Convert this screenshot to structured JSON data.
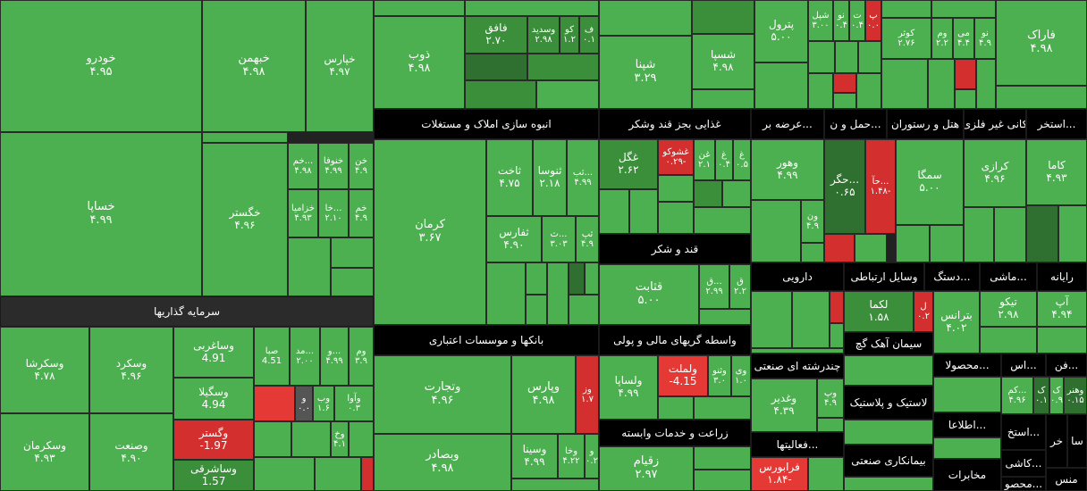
{
  "chart_data": {
    "type": "treemap",
    "colors": {
      "up": "#4caf50",
      "up_mid": "#3b8f3b",
      "up_dark": "#2f6f2f",
      "down": "#d32f2f",
      "down_light": "#e53935",
      "neutral": "#555555",
      "header": "#2b2b2b"
    },
    "groups": [
      {
        "label": "سرمایه گذاریها"
      },
      {
        "label": "انبوه سازی املاک و مستغلات"
      },
      {
        "label": "غذایی بجز قند وشکر"
      },
      {
        "label": "قند و شکر"
      },
      {
        "label": "بانکها و موسسات اعتباری"
      },
      {
        "label": "واسطه گریهای مالی و پولی"
      },
      {
        "label": "زراعت و خدمات وابسته"
      },
      {
        "label": "عرضه بر..."
      },
      {
        "label": "حمل و ن..."
      },
      {
        "label": "هتل و رستوران"
      },
      {
        "label": "کانی غیر فلزی"
      },
      {
        "label": "استخر..."
      },
      {
        "label": "دارویی"
      },
      {
        "label": "وسایل ارتباطی"
      },
      {
        "label": "دستگ..."
      },
      {
        "label": "ماشی..."
      },
      {
        "label": "رایانه"
      },
      {
        "label": "سیمان آهک گچ"
      },
      {
        "label": "محصولا..."
      },
      {
        "label": "اس..."
      },
      {
        "label": "فن..."
      },
      {
        "label": "چندرشته ای صنعتی"
      },
      {
        "label": "لاستیک و پلاستیک"
      },
      {
        "label": "اطلاعا..."
      },
      {
        "label": "استخ..."
      },
      {
        "label": "فعالیتها..."
      },
      {
        "label": "بیمانکاری صنعتی"
      },
      {
        "label": "مخابرات"
      },
      {
        "label": "خر"
      },
      {
        "label": "سا"
      },
      {
        "label": "کاشی..."
      },
      {
        "label": "منس"
      },
      {
        "label": "محصو..."
      }
    ],
    "tiles": [
      {
        "name": "خودرو",
        "value": "۴.۹۵",
        "change": 4.95
      },
      {
        "name": "خبهمن",
        "value": "۴.۹۸",
        "change": 4.98
      },
      {
        "name": "خپارس",
        "value": "۴.۹۷",
        "change": 4.97
      },
      {
        "name": "خساپا",
        "value": "۴.۹۹",
        "change": 4.99
      },
      {
        "name": "خگستر",
        "value": "۴.۹۶",
        "change": 4.96
      },
      {
        "name": "خم...",
        "value": "۴.۹۸",
        "change": 4.98
      },
      {
        "name": "خنوفا",
        "value": "۴.۹۹",
        "change": 4.99
      },
      {
        "name": "خن",
        "value": "۴.۹",
        "change": 4.9
      },
      {
        "name": "خزامیا",
        "value": "۴.۹۳",
        "change": 4.93
      },
      {
        "name": "خا...",
        "value": "۲.۱۰",
        "change": 2.1
      },
      {
        "name": "خم",
        "value": "۴.۹",
        "change": 4.9
      },
      {
        "name": "وسکرشا",
        "value": "۴.۷۸",
        "change": 4.78
      },
      {
        "name": "وسکرد",
        "value": "۴.۹۶",
        "change": 4.96
      },
      {
        "name": "وساغربی",
        "value": "4.91",
        "change": 4.91
      },
      {
        "name": "صبا",
        "value": "4.51",
        "change": 4.51
      },
      {
        "name": "مد...",
        "value": "۲.۰۰",
        "change": 2.0
      },
      {
        "name": "و...",
        "value": "۴.۹۹",
        "change": 4.99
      },
      {
        "name": "وم",
        "value": "۳.۹",
        "change": 3.9
      },
      {
        "name": "وسکرمان",
        "value": "۴.۹۳",
        "change": 4.93
      },
      {
        "name": "وصنعت",
        "value": "۴.۹۰",
        "change": 4.9
      },
      {
        "name": "وسگیلا",
        "value": "4.94",
        "change": 4.94
      },
      {
        "name": "و",
        "value": "۰.۰",
        "change": 0.0
      },
      {
        "name": "وب",
        "value": "۱.۶",
        "change": 1.6
      },
      {
        "name": "وآوا",
        "value": "۰.۳",
        "change": 0.3
      },
      {
        "name": "وگستر",
        "value": "-1.97",
        "change": -1.97
      },
      {
        "name": "وخ",
        "value": "۴.۱",
        "change": 4.1
      },
      {
        "name": "وساشرقی",
        "value": "1.57",
        "change": 1.57
      },
      {
        "name": "فافق",
        "value": "۲.۷۰",
        "change": 2.7
      },
      {
        "name": "وسدید",
        "value": "۲.۹۸",
        "change": 2.98
      },
      {
        "name": "کو",
        "value": "۱.۲",
        "change": 1.2
      },
      {
        "name": "ف",
        "value": "۰.۱",
        "change": 0.1
      },
      {
        "name": "ذوب",
        "value": "۴.۹۸",
        "change": 4.98
      },
      {
        "name": "شپنا",
        "value": "۳.۲۹",
        "change": 3.29
      },
      {
        "name": "شسپا",
        "value": "۴.۹۸",
        "change": 4.98
      },
      {
        "name": "پترول",
        "value": "۵.۰۰",
        "change": 5.0
      },
      {
        "name": "شپل",
        "value": "۳.۰۰",
        "change": 3.0
      },
      {
        "name": "نو",
        "value": "۰.۴",
        "change": 0.4
      },
      {
        "name": "ت",
        "value": "۰.۴",
        "change": 0.4
      },
      {
        "name": "پ",
        "value": "۰.۰",
        "change": 0.0
      },
      {
        "name": "کوثر",
        "value": "۲.۷۶",
        "change": 2.76
      },
      {
        "name": "وم",
        "value": "۲.۲",
        "change": 2.2
      },
      {
        "name": "می",
        "value": "۴.۴",
        "change": 4.4
      },
      {
        "name": "نو",
        "value": "۴.۹",
        "change": 4.9
      },
      {
        "name": "فاراک",
        "value": "۴.۹۸",
        "change": 4.98
      },
      {
        "name": "ثاخت",
        "value": "۴.۷۵",
        "change": 4.75
      },
      {
        "name": "ثنوسا",
        "value": "۲.۱۸",
        "change": 2.18
      },
      {
        "name": "ثب...",
        "value": "۴.۹۹",
        "change": 4.99
      },
      {
        "name": "کرمان",
        "value": "۳.۶۷",
        "change": 3.67
      },
      {
        "name": "ثفارس",
        "value": "۴.۹۰",
        "change": 4.9
      },
      {
        "name": "ث...",
        "value": "۳.۰۳",
        "change": 3.03
      },
      {
        "name": "ثپ",
        "value": "۴.۹",
        "change": 4.9
      },
      {
        "name": "غگل",
        "value": "۲.۶۲",
        "change": 2.62
      },
      {
        "name": "غشوکو",
        "value": "۰.۲۹-",
        "change": -0.29
      },
      {
        "name": "غن",
        "value": "۲.۱",
        "change": 2.1
      },
      {
        "name": "غ",
        "value": "۰.۴",
        "change": 0.4
      },
      {
        "name": "غ",
        "value": "۰.۵",
        "change": 0.5
      },
      {
        "name": "وهور",
        "value": "۴.۹۹",
        "change": 4.99
      },
      {
        "name": "حگر...",
        "value": "۰.۶۵",
        "change": 0.65
      },
      {
        "name": "حآ...",
        "value": "۱.۴۸-",
        "change": -1.48
      },
      {
        "name": "سمگا",
        "value": "۵.۰۰",
        "change": 5.0
      },
      {
        "name": "کرازی",
        "value": "۴.۹۶",
        "change": 4.96
      },
      {
        "name": "کاما",
        "value": "۴.۹۳",
        "change": 4.93
      },
      {
        "name": "ون",
        "value": "۴.۹",
        "change": 4.9
      },
      {
        "name": "قثابت",
        "value": "۵.۰۰",
        "change": 5.0
      },
      {
        "name": "ق...",
        "value": "۲.۹۹",
        "change": 2.99
      },
      {
        "name": "ق",
        "value": "۲.۲",
        "change": 2.2
      },
      {
        "name": "لکما",
        "value": "۱.۵۸",
        "change": 1.58
      },
      {
        "name": "ل",
        "value": "۰.۲",
        "change": 0.2
      },
      {
        "name": "بترانس",
        "value": "۴.۰۲",
        "change": 4.02
      },
      {
        "name": "تیکو",
        "value": "۲.۹۸",
        "change": 2.98
      },
      {
        "name": "آپ",
        "value": "۴.۹۴",
        "change": 4.94
      },
      {
        "name": "وتجارت",
        "value": "۴.۹۶",
        "change": 4.96
      },
      {
        "name": "وپارس",
        "value": "۴.۹۸",
        "change": 4.98
      },
      {
        "name": "وز",
        "value": "۱.۷",
        "change": 1.7
      },
      {
        "name": "ولساپا",
        "value": "۴.۹۹",
        "change": 4.99
      },
      {
        "name": "ولملت",
        "value": "-4.15",
        "change": -4.15
      },
      {
        "name": "وثنو",
        "value": "۳.۰",
        "change": 3.0
      },
      {
        "name": "وی",
        "value": "۱.۰",
        "change": 1.0
      },
      {
        "name": "وغدیر",
        "value": "۴.۳۹",
        "change": 4.39
      },
      {
        "name": "وپ",
        "value": "۴.۹",
        "change": 4.9
      },
      {
        "name": "کم...",
        "value": "۴.۹۶",
        "change": 4.96
      },
      {
        "name": "ک",
        "value": "۰.۱",
        "change": 0.1
      },
      {
        "name": "ک",
        "value": "۰.۹",
        "change": 0.9
      },
      {
        "name": "وهنر",
        "value": "۰.۱۵",
        "change": 0.15
      },
      {
        "name": "وبصادر",
        "value": "۴.۹۸",
        "change": 4.98
      },
      {
        "name": "وسینا",
        "value": "۴.۹۹",
        "change": 4.99
      },
      {
        "name": "وخا",
        "value": "۴.۲۲",
        "change": 4.22
      },
      {
        "name": "و",
        "value": "۰.۲",
        "change": 0.2
      },
      {
        "name": "زقیام",
        "value": "۲.۹۷",
        "change": 2.97
      },
      {
        "name": "فرابورس",
        "value": "۱.۸۴-",
        "change": -1.84
      }
    ]
  }
}
